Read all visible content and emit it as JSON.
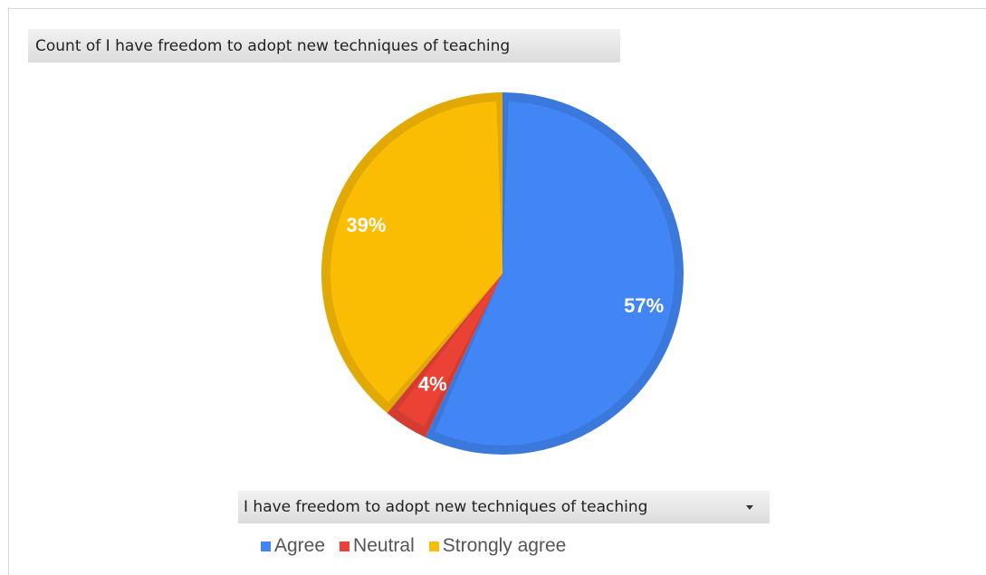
{
  "chart_title": "Count of I have freedom to adopt new techniques of teaching",
  "filter": {
    "label": "I have freedom to adopt new techniques of teaching",
    "icon": "chevron-down-icon"
  },
  "chart_data": {
    "type": "pie",
    "title": "Count of I have freedom to adopt new techniques of teaching",
    "categories": [
      "Agree",
      "Neutral",
      "Strongly agree"
    ],
    "values": [
      57,
      4,
      39
    ],
    "unit": "%",
    "data_labels": [
      "57%",
      "4%",
      "39%"
    ],
    "colors": [
      "#4285f4",
      "#ea4335",
      "#fbbc04"
    ],
    "legend_position": "bottom"
  },
  "legend": {
    "items": [
      {
        "label": "Agree",
        "color": "#4285f4"
      },
      {
        "label": "Neutral",
        "color": "#ea4335"
      },
      {
        "label": "Strongly agree",
        "color": "#fbbc04"
      }
    ]
  }
}
